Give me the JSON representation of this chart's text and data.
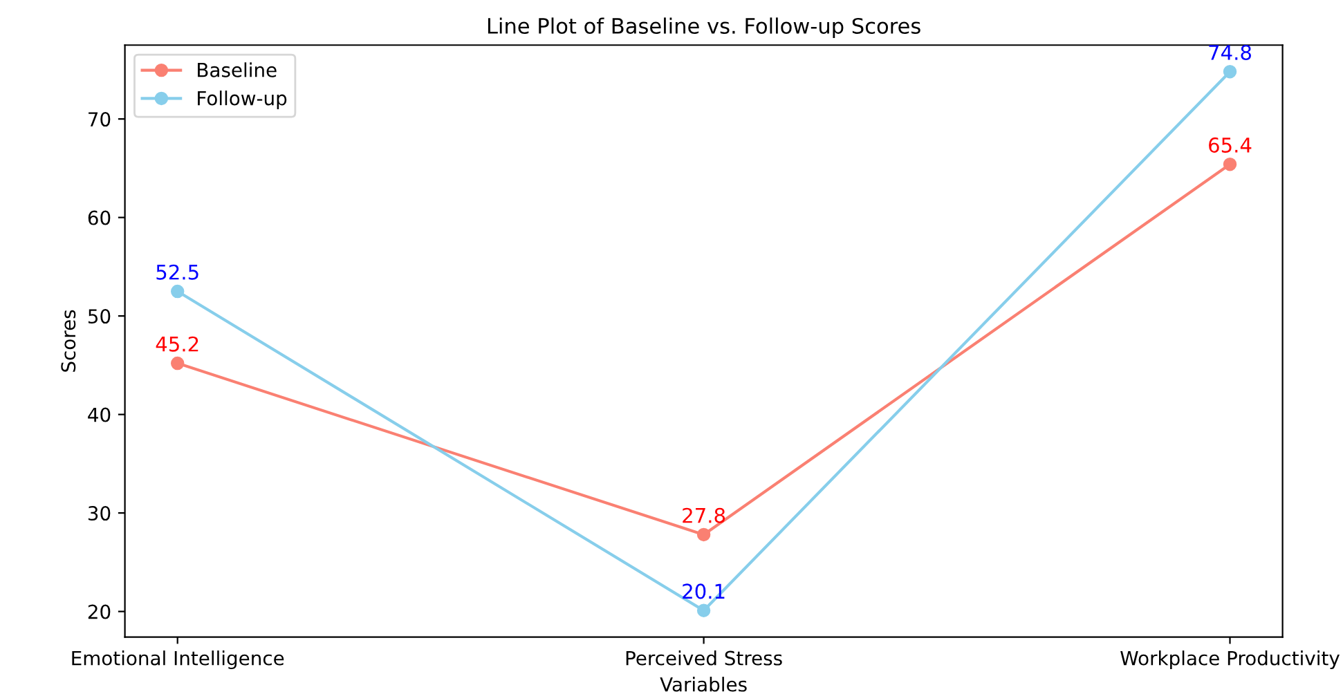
{
  "chart_data": {
    "type": "line",
    "title": "Line Plot of Baseline vs. Follow-up Scores",
    "xlabel": "Variables",
    "ylabel": "Scores",
    "categories": [
      "Emotional Intelligence",
      "Perceived Stress",
      "Workplace Productivity"
    ],
    "series": [
      {
        "name": "Baseline",
        "color": "#fa8072",
        "values": [
          45.2,
          27.8,
          65.4
        ]
      },
      {
        "name": "Follow-up",
        "color": "#87ceeb",
        "values": [
          52.5,
          20.1,
          74.8
        ]
      }
    ],
    "ylim": [
      17.4,
      77.5
    ],
    "yticks": [
      20,
      30,
      40,
      50,
      60,
      70
    ],
    "data_labels": true,
    "legend": "top left",
    "marker": "circle",
    "line_style": "solid",
    "grid": false
  }
}
